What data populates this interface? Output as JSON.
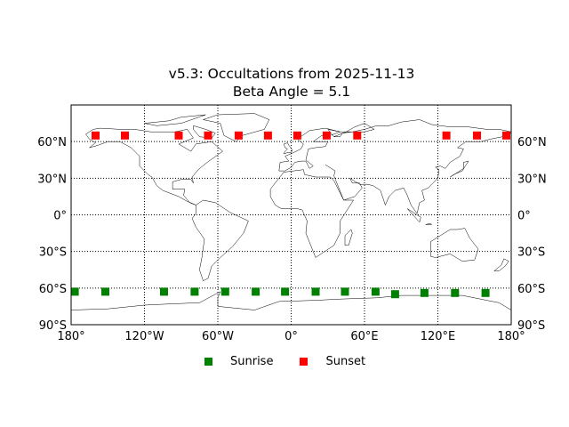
{
  "chart_data": {
    "type": "scatter",
    "title": "v5.3: Occultations from 2025-11-13",
    "subtitle": "Beta Angle = 5.1",
    "xlabel": "",
    "ylabel": "",
    "projection": "cylindrical world map",
    "xlim": [
      -180,
      180
    ],
    "ylim": [
      -90,
      90
    ],
    "grid": true,
    "x_ticks": [
      "180°",
      "120°W",
      "60°W",
      "0°",
      "60°E",
      "120°E",
      "180°"
    ],
    "y_ticks_left": [
      "90°S",
      "60°S",
      "30°S",
      "0°",
      "30°N",
      "60°N"
    ],
    "y_ticks_right": [
      "90°S",
      "60°S",
      "30°S",
      "0°",
      "30°N",
      "60°N"
    ],
    "legend_position": "bottom center",
    "series": [
      {
        "name": "Sunrise",
        "color": "#008000",
        "marker": "square",
        "points": [
          {
            "lon": -177,
            "lat": -63
          },
          {
            "lon": -152,
            "lat": -63
          },
          {
            "lon": -104,
            "lat": -63
          },
          {
            "lon": -79,
            "lat": -63
          },
          {
            "lon": -54,
            "lat": -63
          },
          {
            "lon": -29,
            "lat": -63
          },
          {
            "lon": -5,
            "lat": -63
          },
          {
            "lon": 20,
            "lat": -63
          },
          {
            "lon": 44,
            "lat": -63
          },
          {
            "lon": 69,
            "lat": -63
          },
          {
            "lon": 85,
            "lat": -65
          },
          {
            "lon": 109,
            "lat": -64
          },
          {
            "lon": 134,
            "lat": -64
          },
          {
            "lon": 159,
            "lat": -64
          }
        ]
      },
      {
        "name": "Sunset",
        "color": "#ff0000",
        "marker": "square",
        "points": [
          {
            "lon": -160,
            "lat": 65
          },
          {
            "lon": -136,
            "lat": 65
          },
          {
            "lon": -92,
            "lat": 65
          },
          {
            "lon": -68,
            "lat": 65
          },
          {
            "lon": -43,
            "lat": 65
          },
          {
            "lon": -19,
            "lat": 65
          },
          {
            "lon": 5,
            "lat": 65
          },
          {
            "lon": 29,
            "lat": 65
          },
          {
            "lon": 54,
            "lat": 65
          },
          {
            "lon": 127,
            "lat": 65
          },
          {
            "lon": 152,
            "lat": 65
          },
          {
            "lon": 176,
            "lat": 65
          }
        ]
      }
    ]
  },
  "legend": {
    "sunrise_label": "Sunrise",
    "sunset_label": "Sunset"
  }
}
